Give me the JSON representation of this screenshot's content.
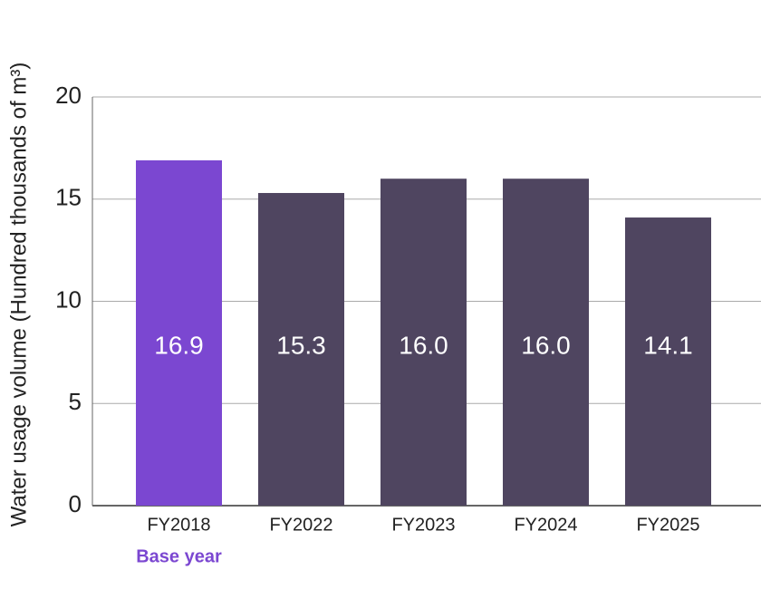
{
  "chart_data": {
    "type": "bar",
    "y_axis_label": "Water usage volume (Hundred thousands of m³)",
    "categories": [
      "FY2018",
      "FY2022",
      "FY2023",
      "FY2024",
      "FY2025"
    ],
    "values": [
      16.9,
      15.3,
      16.0,
      16.0,
      14.1
    ],
    "value_labels": [
      "16.9",
      "15.3",
      "16.0",
      "16.0",
      "14.1"
    ],
    "colors": [
      "#7b47d1",
      "#4f4560",
      "#4f4560",
      "#4f4560",
      "#4f4560"
    ],
    "base_year_label": "Base year",
    "ylim": [
      0,
      20
    ],
    "yticks": [
      0,
      5,
      10,
      15,
      20
    ],
    "grid": true
  }
}
